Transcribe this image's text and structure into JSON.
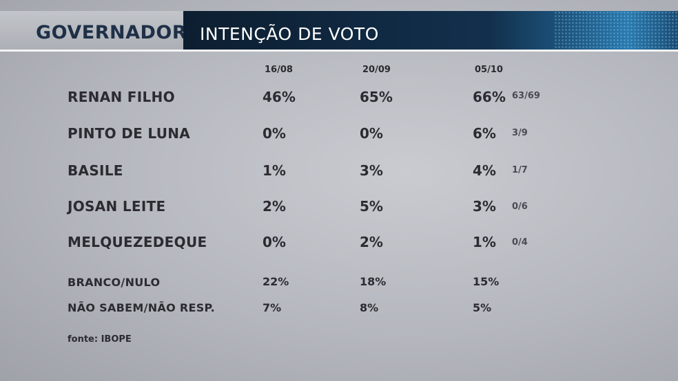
{
  "header": {
    "title": "GOVERNADOR",
    "subtitle": "INTENÇÃO DE VOTO"
  },
  "chart_data": {
    "type": "table",
    "columns": [
      "16/08",
      "20/09",
      "05/10"
    ],
    "rows": [
      {
        "name": "RENAN FILHO",
        "values": [
          "46%",
          "65%",
          "66%"
        ],
        "range": "63/69"
      },
      {
        "name": "PINTO DE LUNA",
        "values": [
          "0%",
          "0%",
          "6%"
        ],
        "range": "3/9"
      },
      {
        "name": "BASILE",
        "values": [
          "1%",
          "3%",
          "4%"
        ],
        "range": "1/7"
      },
      {
        "name": "JOSAN LEITE",
        "values": [
          "2%",
          "5%",
          "3%"
        ],
        "range": "0/6"
      },
      {
        "name": "MELQUEZEDEQUE",
        "values": [
          "0%",
          "2%",
          "1%"
        ],
        "range": "0/4"
      }
    ],
    "other_rows": [
      {
        "name": "BRANCO/NULO",
        "values": [
          "22%",
          "18%",
          "15%"
        ]
      },
      {
        "name": "NÃO SABEM/NÃO RESP.",
        "values": [
          "7%",
          "8%",
          "5%"
        ]
      }
    ],
    "source": "fonte: IBOPE"
  }
}
